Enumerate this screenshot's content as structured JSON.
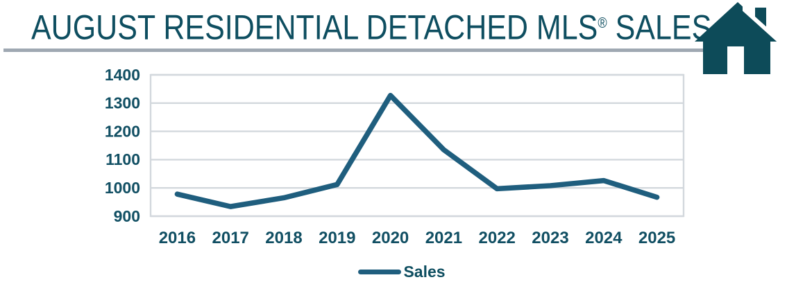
{
  "header": {
    "title_main": "AUGUST RESIDENTIAL DETACHED MLS",
    "registered_mark": "®",
    "title_suffix": " SALES"
  },
  "icons": {
    "house_icon": "house"
  },
  "colors": {
    "title_text": "#0E4E60",
    "tick_text": "#114F63",
    "line_blue": "#1F5E7E",
    "grid_gray": "#D3D8DD",
    "divider_gray": "#9FA8B2",
    "house_teal": "#0D4B59"
  },
  "legend": {
    "label": "Sales"
  },
  "chart_data": {
    "type": "line",
    "title": "AUGUST RESIDENTIAL DETACHED MLS® SALES",
    "categories": [
      "2016",
      "2017",
      "2018",
      "2019",
      "2020",
      "2021",
      "2022",
      "2023",
      "2024",
      "2025"
    ],
    "series": [
      {
        "name": "Sales",
        "values": [
          978,
          934,
          965,
          1012,
          1327,
          1135,
          997,
          1008,
          1026,
          967
        ]
      }
    ],
    "xlabel": "",
    "ylabel": "",
    "ylim": [
      900,
      1400
    ],
    "ytick_step": 100,
    "grid": true,
    "legend_position": "bottom"
  }
}
